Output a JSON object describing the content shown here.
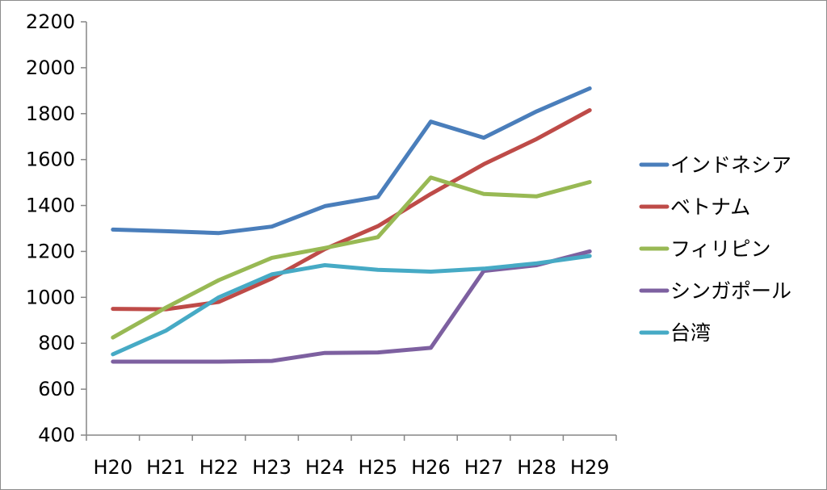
{
  "chart_data": {
    "type": "line",
    "title": "",
    "xlabel": "",
    "ylabel": "",
    "categories": [
      "H20",
      "H21",
      "H22",
      "H23",
      "H24",
      "H25",
      "H26",
      "H27",
      "H28",
      "H29"
    ],
    "ylim": [
      400,
      2200
    ],
    "yticks": [
      400,
      600,
      800,
      1000,
      1200,
      1400,
      1600,
      1800,
      2000,
      2200
    ],
    "grid": false,
    "legend_position": "right",
    "series": [
      {
        "name": "インドネシア",
        "color": "#4a7ebb",
        "values": [
          1295,
          1288,
          1280,
          1308,
          1397,
          1437,
          1765,
          1695,
          1810,
          1910
        ]
      },
      {
        "name": "ベトナム",
        "color": "#be4b48",
        "values": [
          950,
          948,
          980,
          1082,
          1210,
          1310,
          1450,
          1580,
          1690,
          1815
        ]
      },
      {
        "name": "フィリピン",
        "color": "#98b954",
        "values": [
          825,
          955,
          1075,
          1172,
          1215,
          1262,
          1522,
          1450,
          1440,
          1502
        ]
      },
      {
        "name": "シンガポール",
        "color": "#7d60a0",
        "values": [
          720,
          720,
          720,
          723,
          758,
          760,
          780,
          1115,
          1140,
          1200
        ]
      },
      {
        "name": "台湾",
        "color": "#46aac5",
        "values": [
          752,
          855,
          1000,
          1100,
          1140,
          1120,
          1112,
          1125,
          1148,
          1180
        ]
      }
    ]
  }
}
